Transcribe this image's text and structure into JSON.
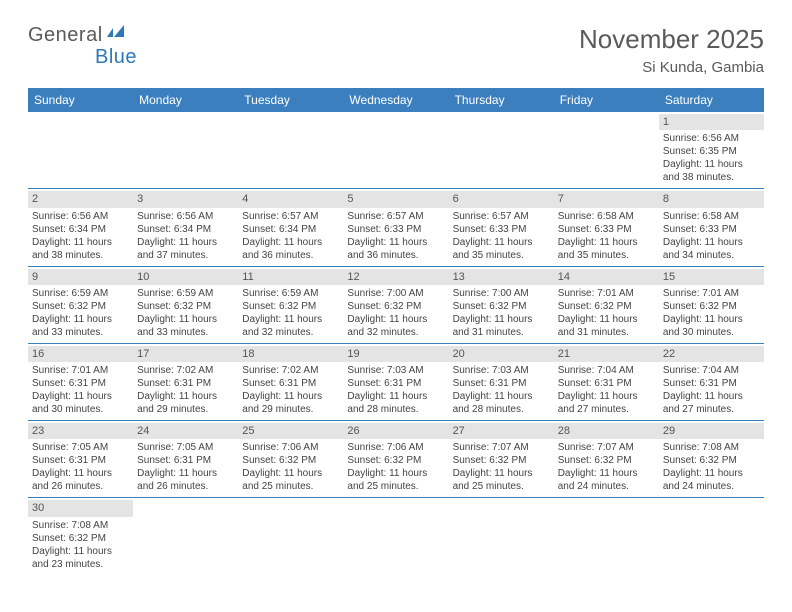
{
  "logo": {
    "text1": "General",
    "text2": "Blue"
  },
  "title": "November 2025",
  "subtitle": "Si Kunda, Gambia",
  "colors": {
    "header_bg": "#3b7fbf",
    "header_text": "#ffffff",
    "daynum_bg": "#e4e4e4",
    "rule": "#3b7fbf",
    "title_color": "#5a5a5a"
  },
  "daynames": [
    "Sunday",
    "Monday",
    "Tuesday",
    "Wednesday",
    "Thursday",
    "Friday",
    "Saturday"
  ],
  "weeks": [
    [
      null,
      null,
      null,
      null,
      null,
      null,
      {
        "n": "1",
        "sr": "6:56 AM",
        "ss": "6:35 PM",
        "dl": "11 hours and 38 minutes."
      }
    ],
    [
      {
        "n": "2",
        "sr": "6:56 AM",
        "ss": "6:34 PM",
        "dl": "11 hours and 38 minutes."
      },
      {
        "n": "3",
        "sr": "6:56 AM",
        "ss": "6:34 PM",
        "dl": "11 hours and 37 minutes."
      },
      {
        "n": "4",
        "sr": "6:57 AM",
        "ss": "6:34 PM",
        "dl": "11 hours and 36 minutes."
      },
      {
        "n": "5",
        "sr": "6:57 AM",
        "ss": "6:33 PM",
        "dl": "11 hours and 36 minutes."
      },
      {
        "n": "6",
        "sr": "6:57 AM",
        "ss": "6:33 PM",
        "dl": "11 hours and 35 minutes."
      },
      {
        "n": "7",
        "sr": "6:58 AM",
        "ss": "6:33 PM",
        "dl": "11 hours and 35 minutes."
      },
      {
        "n": "8",
        "sr": "6:58 AM",
        "ss": "6:33 PM",
        "dl": "11 hours and 34 minutes."
      }
    ],
    [
      {
        "n": "9",
        "sr": "6:59 AM",
        "ss": "6:32 PM",
        "dl": "11 hours and 33 minutes."
      },
      {
        "n": "10",
        "sr": "6:59 AM",
        "ss": "6:32 PM",
        "dl": "11 hours and 33 minutes."
      },
      {
        "n": "11",
        "sr": "6:59 AM",
        "ss": "6:32 PM",
        "dl": "11 hours and 32 minutes."
      },
      {
        "n": "12",
        "sr": "7:00 AM",
        "ss": "6:32 PM",
        "dl": "11 hours and 32 minutes."
      },
      {
        "n": "13",
        "sr": "7:00 AM",
        "ss": "6:32 PM",
        "dl": "11 hours and 31 minutes."
      },
      {
        "n": "14",
        "sr": "7:01 AM",
        "ss": "6:32 PM",
        "dl": "11 hours and 31 minutes."
      },
      {
        "n": "15",
        "sr": "7:01 AM",
        "ss": "6:32 PM",
        "dl": "11 hours and 30 minutes."
      }
    ],
    [
      {
        "n": "16",
        "sr": "7:01 AM",
        "ss": "6:31 PM",
        "dl": "11 hours and 30 minutes."
      },
      {
        "n": "17",
        "sr": "7:02 AM",
        "ss": "6:31 PM",
        "dl": "11 hours and 29 minutes."
      },
      {
        "n": "18",
        "sr": "7:02 AM",
        "ss": "6:31 PM",
        "dl": "11 hours and 29 minutes."
      },
      {
        "n": "19",
        "sr": "7:03 AM",
        "ss": "6:31 PM",
        "dl": "11 hours and 28 minutes."
      },
      {
        "n": "20",
        "sr": "7:03 AM",
        "ss": "6:31 PM",
        "dl": "11 hours and 28 minutes."
      },
      {
        "n": "21",
        "sr": "7:04 AM",
        "ss": "6:31 PM",
        "dl": "11 hours and 27 minutes."
      },
      {
        "n": "22",
        "sr": "7:04 AM",
        "ss": "6:31 PM",
        "dl": "11 hours and 27 minutes."
      }
    ],
    [
      {
        "n": "23",
        "sr": "7:05 AM",
        "ss": "6:31 PM",
        "dl": "11 hours and 26 minutes."
      },
      {
        "n": "24",
        "sr": "7:05 AM",
        "ss": "6:31 PM",
        "dl": "11 hours and 26 minutes."
      },
      {
        "n": "25",
        "sr": "7:06 AM",
        "ss": "6:32 PM",
        "dl": "11 hours and 25 minutes."
      },
      {
        "n": "26",
        "sr": "7:06 AM",
        "ss": "6:32 PM",
        "dl": "11 hours and 25 minutes."
      },
      {
        "n": "27",
        "sr": "7:07 AM",
        "ss": "6:32 PM",
        "dl": "11 hours and 25 minutes."
      },
      {
        "n": "28",
        "sr": "7:07 AM",
        "ss": "6:32 PM",
        "dl": "11 hours and 24 minutes."
      },
      {
        "n": "29",
        "sr": "7:08 AM",
        "ss": "6:32 PM",
        "dl": "11 hours and 24 minutes."
      }
    ],
    [
      {
        "n": "30",
        "sr": "7:08 AM",
        "ss": "6:32 PM",
        "dl": "11 hours and 23 minutes."
      },
      null,
      null,
      null,
      null,
      null,
      null
    ]
  ],
  "labels": {
    "sunrise": "Sunrise:",
    "sunset": "Sunset:",
    "daylight": "Daylight:"
  }
}
